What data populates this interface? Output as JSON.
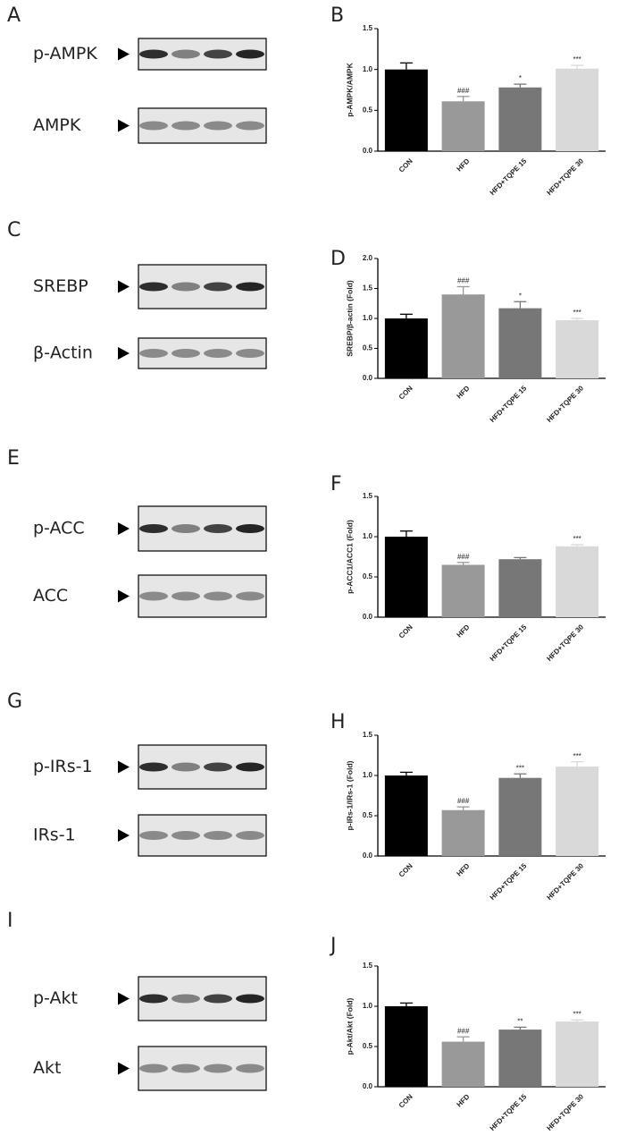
{
  "blots": [
    {
      "letter": "A",
      "rows": [
        {
          "label": "p-AMPK"
        },
        {
          "label": "AMPK"
        }
      ]
    },
    {
      "letter": "C",
      "rows": [
        {
          "label": "SREBP"
        },
        {
          "label": "β-Actin"
        }
      ]
    },
    {
      "letter": "E",
      "rows": [
        {
          "label": "p-ACC"
        },
        {
          "label": "ACC"
        }
      ]
    },
    {
      "letter": "G",
      "rows": [
        {
          "label": "p-IRs-1"
        },
        {
          "label": "IRs-1"
        }
      ]
    },
    {
      "letter": "I",
      "rows": [
        {
          "label": "p-Akt"
        },
        {
          "label": "Akt"
        }
      ]
    }
  ],
  "chart_data": [
    {
      "type": "bar",
      "panel": "B",
      "ylabel": "p-AMPK/AMPK",
      "categories": [
        "CON",
        "HFD",
        "HFD+TQPE 15",
        "HFD+TQPE 30"
      ],
      "values": [
        1.0,
        0.61,
        0.78,
        1.01
      ],
      "errors": [
        0.08,
        0.06,
        0.04,
        0.04
      ],
      "annotations": [
        null,
        "###",
        "*",
        "***"
      ],
      "colors": [
        "#000000",
        "#999999",
        "#777777",
        "#d9d9d9"
      ],
      "ylim": [
        0,
        1.5
      ],
      "yticks": [
        {
          "value": 0,
          "label": "0.0"
        },
        {
          "value": 0.5,
          "label": "0.5"
        },
        {
          "value": 1,
          "label": "1.0"
        },
        {
          "value": 1.5,
          "label": "1.5"
        }
      ]
    },
    {
      "type": "bar",
      "panel": "D",
      "ylabel": "SREBP/β-actin (Fold)",
      "categories": [
        "CON",
        "HFD",
        "HFD+TQPE 15",
        "HFD+TQPE 30"
      ],
      "values": [
        1.0,
        1.4,
        1.17,
        0.97
      ],
      "errors": [
        0.07,
        0.13,
        0.11,
        0.03
      ],
      "annotations": [
        null,
        "###",
        "*",
        "***"
      ],
      "colors": [
        "#000000",
        "#999999",
        "#777777",
        "#d9d9d9"
      ],
      "ylim": [
        0,
        2
      ],
      "yticks": [
        {
          "value": 0,
          "label": "0.0"
        },
        {
          "value": 0.5,
          "label": "0.5"
        },
        {
          "value": 1,
          "label": "1.0"
        },
        {
          "value": 1.5,
          "label": "1.5"
        },
        {
          "value": 2,
          "label": "2.0"
        }
      ]
    },
    {
      "type": "bar",
      "panel": "F",
      "ylabel": "p-ACC1/ACC1 (Fold)",
      "categories": [
        "CON",
        "HFD",
        "HFD+TQPE 15",
        "HFD+TQPE 30"
      ],
      "values": [
        1.0,
        0.65,
        0.72,
        0.88
      ],
      "errors": [
        0.07,
        0.03,
        0.02,
        0.02
      ],
      "annotations": [
        null,
        "###",
        null,
        "***"
      ],
      "colors": [
        "#000000",
        "#999999",
        "#777777",
        "#d9d9d9"
      ],
      "ylim": [
        0,
        1.5
      ],
      "yticks": [
        {
          "value": 0,
          "label": "0.0"
        },
        {
          "value": 0.5,
          "label": "0.5"
        },
        {
          "value": 1,
          "label": "1.0"
        },
        {
          "value": 1.5,
          "label": "1.5"
        }
      ]
    },
    {
      "type": "bar",
      "panel": "H",
      "ylabel": "p-IRs-1/IRs-1 (Fold)",
      "categories": [
        "CON",
        "HFD",
        "HFD+TQPE 15",
        "HFD+TQPE 30"
      ],
      "values": [
        1.0,
        0.57,
        0.97,
        1.11
      ],
      "errors": [
        0.04,
        0.04,
        0.05,
        0.06
      ],
      "annotations": [
        null,
        "###",
        "***",
        "***"
      ],
      "colors": [
        "#000000",
        "#999999",
        "#777777",
        "#d9d9d9"
      ],
      "ylim": [
        0,
        1.5
      ],
      "yticks": [
        {
          "value": 0,
          "label": "0.0"
        },
        {
          "value": 0.5,
          "label": "0.5"
        },
        {
          "value": 1,
          "label": "1.0"
        },
        {
          "value": 1.5,
          "label": "1.5"
        }
      ]
    },
    {
      "type": "bar",
      "panel": "J",
      "ylabel": "p-Akt/Akt (Fold)",
      "categories": [
        "CON",
        "HFD",
        "HFD+TQPE 15",
        "HFD+TQPE 30"
      ],
      "values": [
        1.0,
        0.56,
        0.71,
        0.81
      ],
      "errors": [
        0.04,
        0.06,
        0.03,
        0.02
      ],
      "annotations": [
        null,
        "###",
        "**",
        "***"
      ],
      "colors": [
        "#000000",
        "#999999",
        "#777777",
        "#d9d9d9"
      ],
      "ylim": [
        0,
        1.5
      ],
      "yticks": [
        {
          "value": 0,
          "label": "0.0"
        },
        {
          "value": 0.5,
          "label": "0.5"
        },
        {
          "value": 1,
          "label": "1.0"
        },
        {
          "value": 1.5,
          "label": "1.5"
        }
      ]
    }
  ]
}
